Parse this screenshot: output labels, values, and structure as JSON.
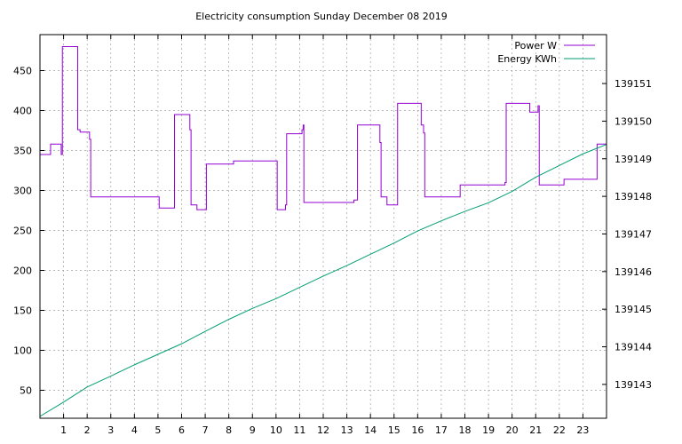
{
  "chart_data": {
    "type": "line",
    "title": "Electricity consumption Sunday December 08 2019",
    "xlabel": "",
    "ylabel": "",
    "y2label": "",
    "xlim": [
      0,
      24
    ],
    "ylim": [
      15,
      495
    ],
    "y2lim": [
      139142.1,
      139152.3
    ],
    "x_ticks": [
      1,
      2,
      3,
      4,
      5,
      6,
      7,
      8,
      9,
      10,
      11,
      12,
      13,
      14,
      15,
      16,
      17,
      18,
      19,
      20,
      21,
      22,
      23
    ],
    "y_ticks": [
      50,
      100,
      150,
      200,
      250,
      300,
      350,
      400,
      450
    ],
    "y2_ticks": [
      139143,
      139144,
      139145,
      139146,
      139147,
      139148,
      139149,
      139150,
      139151
    ],
    "grid": true,
    "legend_position": "top-right",
    "series": [
      {
        "name": "Power W",
        "axis": "y",
        "color": "#9400d3",
        "step": true,
        "points": [
          [
            0,
            345
          ],
          [
            0.45,
            345
          ],
          [
            0.45,
            358
          ],
          [
            0.9,
            358
          ],
          [
            0.9,
            345
          ],
          [
            0.95,
            345
          ],
          [
            0.95,
            480
          ],
          [
            1.6,
            480
          ],
          [
            1.6,
            376
          ],
          [
            1.7,
            376
          ],
          [
            1.7,
            373
          ],
          [
            2.1,
            373
          ],
          [
            2.1,
            364
          ],
          [
            2.15,
            364
          ],
          [
            2.15,
            292
          ],
          [
            5.05,
            292
          ],
          [
            5.05,
            278
          ],
          [
            5.7,
            278
          ],
          [
            5.7,
            395
          ],
          [
            6.35,
            395
          ],
          [
            6.35,
            376
          ],
          [
            6.4,
            376
          ],
          [
            6.4,
            282
          ],
          [
            6.65,
            282
          ],
          [
            6.65,
            276
          ],
          [
            7.05,
            276
          ],
          [
            7.05,
            333
          ],
          [
            8.2,
            333
          ],
          [
            8.2,
            337
          ],
          [
            10.05,
            337
          ],
          [
            10.05,
            276
          ],
          [
            10.4,
            276
          ],
          [
            10.4,
            282
          ],
          [
            10.45,
            282
          ],
          [
            10.45,
            371
          ],
          [
            11.1,
            371
          ],
          [
            11.1,
            376
          ],
          [
            11.15,
            376
          ],
          [
            11.15,
            382
          ],
          [
            11.18,
            382
          ],
          [
            11.18,
            285
          ],
          [
            13.3,
            285
          ],
          [
            13.3,
            288
          ],
          [
            13.45,
            288
          ],
          [
            13.45,
            382
          ],
          [
            14.4,
            382
          ],
          [
            14.4,
            360
          ],
          [
            14.45,
            360
          ],
          [
            14.45,
            292
          ],
          [
            14.7,
            292
          ],
          [
            14.7,
            282
          ],
          [
            15.15,
            282
          ],
          [
            15.15,
            409
          ],
          [
            16.15,
            409
          ],
          [
            16.15,
            382
          ],
          [
            16.25,
            382
          ],
          [
            16.25,
            372
          ],
          [
            16.3,
            372
          ],
          [
            16.3,
            292
          ],
          [
            17.8,
            292
          ],
          [
            17.8,
            307
          ],
          [
            19.7,
            307
          ],
          [
            19.7,
            310
          ],
          [
            19.75,
            310
          ],
          [
            19.75,
            409
          ],
          [
            20.75,
            409
          ],
          [
            20.75,
            398
          ],
          [
            21.1,
            398
          ],
          [
            21.1,
            406
          ],
          [
            21.15,
            406
          ],
          [
            21.15,
            307
          ],
          [
            22.2,
            307
          ],
          [
            22.2,
            314
          ],
          [
            23.6,
            314
          ],
          [
            23.6,
            358
          ],
          [
            24,
            358
          ]
        ]
      },
      {
        "name": "Energy KWh",
        "axis": "y2",
        "color": "#009e73",
        "step": false,
        "points": [
          [
            0,
            139142.15
          ],
          [
            1,
            139142.53
          ],
          [
            2,
            139142.93
          ],
          [
            3,
            139143.22
          ],
          [
            4,
            139143.52
          ],
          [
            5,
            139143.8
          ],
          [
            6,
            139144.08
          ],
          [
            7,
            139144.41
          ],
          [
            8,
            139144.73
          ],
          [
            9,
            139145.02
          ],
          [
            10,
            139145.28
          ],
          [
            11,
            139145.58
          ],
          [
            12,
            139145.88
          ],
          [
            13,
            139146.16
          ],
          [
            14,
            139146.46
          ],
          [
            15,
            139146.76
          ],
          [
            16,
            139147.08
          ],
          [
            17,
            139147.35
          ],
          [
            18,
            139147.6
          ],
          [
            19,
            139147.83
          ],
          [
            20,
            139148.13
          ],
          [
            21,
            139148.51
          ],
          [
            22,
            139148.82
          ],
          [
            23,
            139149.13
          ],
          [
            24,
            139149.38
          ]
        ]
      }
    ]
  }
}
